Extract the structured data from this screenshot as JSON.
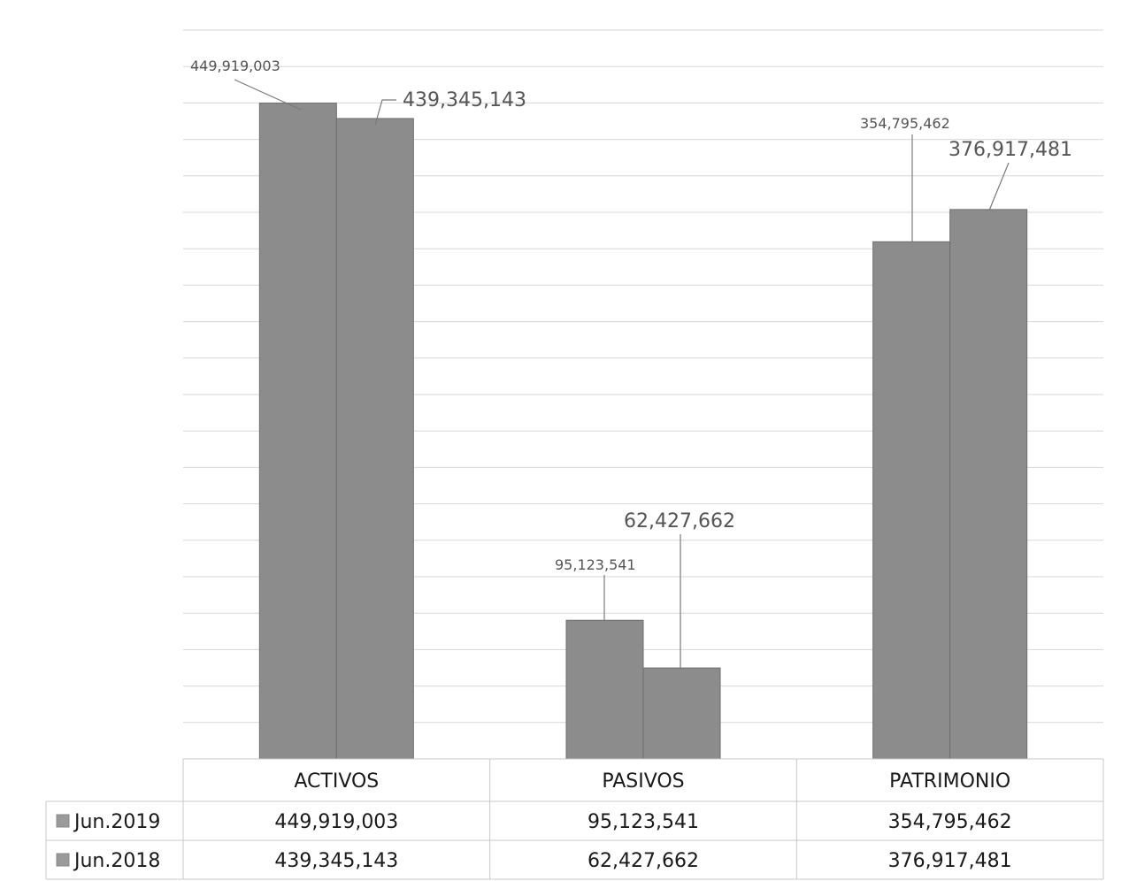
{
  "chart_data": {
    "type": "bar",
    "categories": [
      "ACTIVOS",
      "PASIVOS",
      "PATRIMONIO"
    ],
    "series": [
      {
        "name": "Jun.2019",
        "values": [
          449919003,
          95123541,
          354795462
        ],
        "labels": [
          "449,919,003",
          "95,123,541",
          "354,795,462"
        ]
      },
      {
        "name": "Jun.2018",
        "values": [
          439345143,
          62427662,
          376917481
        ],
        "labels": [
          "439,345,143",
          "62,427,662",
          "376,917,481"
        ]
      }
    ],
    "ylim": [
      0,
      500000000
    ],
    "grid": true,
    "legend": "data-table",
    "colors": {
      "bar": "#8c8c8c",
      "legend_key": "#9a9a9a"
    }
  }
}
